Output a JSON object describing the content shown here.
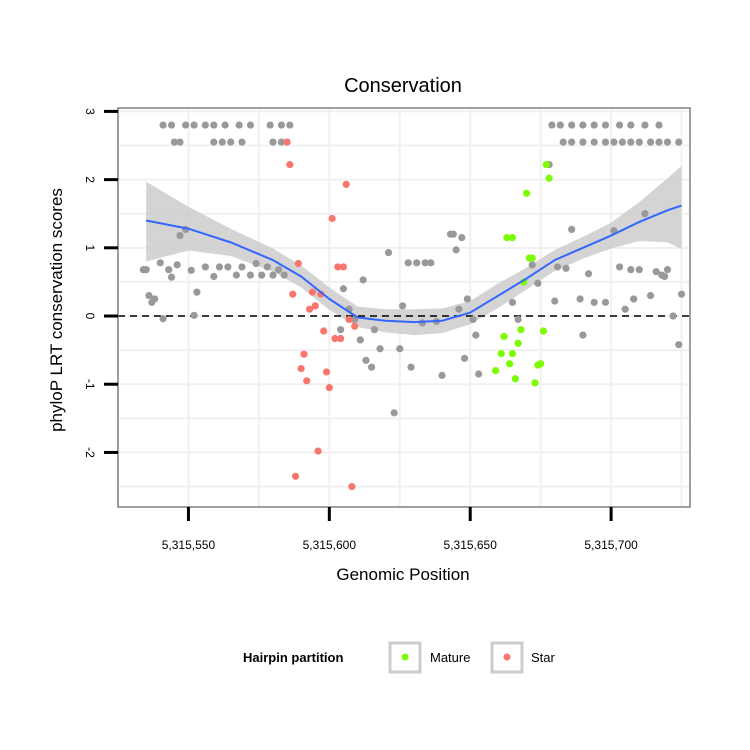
{
  "chart_data": {
    "type": "scatter",
    "title": "Conservation",
    "xlabel": "Genomic Position",
    "ylabel": "phyloP LRT conservation scores",
    "xlim": [
      5315525,
      5315728
    ],
    "ylim": [
      -2.8,
      3.05
    ],
    "x_ticks": [
      5315550,
      5315600,
      5315650,
      5315700
    ],
    "x_tick_labels": [
      "5,315,550",
      "5,315,600",
      "5,315,650",
      "5,315,700"
    ],
    "y_ticks": [
      -2,
      -1,
      0,
      1,
      2,
      3
    ],
    "y_tick_labels": [
      "-2",
      "-1",
      "0",
      "1",
      "2",
      "3"
    ],
    "reference_line": {
      "y": 0,
      "style": "dashed"
    },
    "colors": {
      "other": "#999999",
      "Mature": "#7cfc00",
      "Star": "#f8766d",
      "smooth_line": "#3366ff",
      "smooth_band": "#cccccc",
      "grid": "#f0f0f0",
      "frame": "#808080"
    },
    "legend": {
      "title": "Hairpin partition",
      "position": "bottom",
      "entries": [
        {
          "label": "Mature",
          "color": "#7cfc00"
        },
        {
          "label": "Star",
          "color": "#f8766d"
        }
      ]
    },
    "smooth": {
      "x": [
        5315535,
        5315550,
        5315565,
        5315580,
        5315590,
        5315600,
        5315610,
        5315620,
        5315630,
        5315640,
        5315650,
        5315660,
        5315670,
        5315680,
        5315690,
        5315700,
        5315710,
        5315720,
        5315725
      ],
      "y": [
        1.4,
        1.28,
        1.08,
        0.82,
        0.58,
        0.25,
        -0.02,
        -0.07,
        -0.09,
        -0.07,
        0.05,
        0.3,
        0.55,
        0.82,
        1.0,
        1.18,
        1.38,
        1.55,
        1.62
      ],
      "lower": [
        0.8,
        0.96,
        0.88,
        0.65,
        0.42,
        0.09,
        -0.16,
        -0.24,
        -0.28,
        -0.25,
        -0.12,
        0.12,
        0.39,
        0.66,
        0.84,
        0.99,
        1.1,
        1.08,
        0.98
      ],
      "upper": [
        1.97,
        1.6,
        1.28,
        0.99,
        0.74,
        0.42,
        0.14,
        0.1,
        0.1,
        0.11,
        0.22,
        0.48,
        0.71,
        0.97,
        1.16,
        1.37,
        1.67,
        2.02,
        2.2
      ]
    },
    "series": [
      {
        "name": "Other",
        "points": [
          [
            5315534,
            0.68
          ],
          [
            5315535,
            0.68
          ],
          [
            5315536,
            0.3
          ],
          [
            5315537,
            0.2
          ],
          [
            5315538,
            0.25
          ],
          [
            5315540,
            0.78
          ],
          [
            5315541,
            -0.04
          ],
          [
            5315543,
            0.68
          ],
          [
            5315544,
            0.57
          ],
          [
            5315546,
            0.75
          ],
          [
            5315547,
            1.18
          ],
          [
            5315549,
            1.27
          ],
          [
            5315551,
            0.67
          ],
          [
            5315552,
            0.01
          ],
          [
            5315553,
            0.35
          ],
          [
            5315556,
            0.72
          ],
          [
            5315559,
            0.58
          ],
          [
            5315561,
            0.72
          ],
          [
            5315564,
            0.72
          ],
          [
            5315567,
            0.6
          ],
          [
            5315569,
            0.72
          ],
          [
            5315572,
            0.6
          ],
          [
            5315574,
            0.77
          ],
          [
            5315576,
            0.6
          ],
          [
            5315578,
            0.72
          ],
          [
            5315580,
            0.6
          ],
          [
            5315582,
            0.68
          ],
          [
            5315584,
            0.6
          ],
          [
            5315545,
            2.55
          ],
          [
            5315547,
            2.55
          ],
          [
            5315541,
            2.8
          ],
          [
            5315544,
            2.8
          ],
          [
            5315549,
            2.8
          ],
          [
            5315552,
            2.8
          ],
          [
            5315556,
            2.8
          ],
          [
            5315559,
            2.8
          ],
          [
            5315563,
            2.8
          ],
          [
            5315568,
            2.8
          ],
          [
            5315572,
            2.8
          ],
          [
            5315579,
            2.8
          ],
          [
            5315583,
            2.8
          ],
          [
            5315586,
            2.8
          ],
          [
            5315559,
            2.55
          ],
          [
            5315562,
            2.55
          ],
          [
            5315565,
            2.55
          ],
          [
            5315569,
            2.55
          ],
          [
            5315580,
            2.55
          ],
          [
            5315583,
            2.55
          ],
          [
            5315604,
            -0.2
          ],
          [
            5315605,
            0.4
          ],
          [
            5315607,
            0.1
          ],
          [
            5315609,
            -0.05
          ],
          [
            5315611,
            -0.35
          ],
          [
            5315612,
            0.53
          ],
          [
            5315613,
            -0.65
          ],
          [
            5315615,
            -0.75
          ],
          [
            5315616,
            -0.2
          ],
          [
            5315618,
            -0.48
          ],
          [
            5315621,
            0.93
          ],
          [
            5315623,
            -1.42
          ],
          [
            5315625,
            -0.48
          ],
          [
            5315626,
            0.15
          ],
          [
            5315628,
            0.78
          ],
          [
            5315629,
            -0.75
          ],
          [
            5315631,
            0.78
          ],
          [
            5315633,
            -0.1
          ],
          [
            5315634,
            0.78
          ],
          [
            5315636,
            0.78
          ],
          [
            5315638,
            -0.08
          ],
          [
            5315640,
            -0.87
          ],
          [
            5315643,
            1.2
          ],
          [
            5315644,
            1.2
          ],
          [
            5315645,
            0.97
          ],
          [
            5315646,
            0.1
          ],
          [
            5315647,
            1.15
          ],
          [
            5315648,
            -0.62
          ],
          [
            5315649,
            0.25
          ],
          [
            5315651,
            -0.05
          ],
          [
            5315652,
            -0.28
          ],
          [
            5315653,
            -0.85
          ],
          [
            5315665,
            0.2
          ],
          [
            5315667,
            -0.05
          ],
          [
            5315672,
            0.75
          ],
          [
            5315674,
            0.48
          ],
          [
            5315678,
            2.22
          ],
          [
            5315680,
            0.22
          ],
          [
            5315681,
            0.72
          ],
          [
            5315684,
            0.7
          ],
          [
            5315686,
            1.27
          ],
          [
            5315689,
            0.25
          ],
          [
            5315690,
            -0.28
          ],
          [
            5315692,
            0.62
          ],
          [
            5315694,
            0.2
          ],
          [
            5315698,
            0.2
          ],
          [
            5315701,
            1.25
          ],
          [
            5315703,
            0.72
          ],
          [
            5315705,
            0.1
          ],
          [
            5315707,
            0.68
          ],
          [
            5315708,
            0.25
          ],
          [
            5315710,
            0.68
          ],
          [
            5315712,
            1.5
          ],
          [
            5315714,
            0.3
          ],
          [
            5315716,
            0.65
          ],
          [
            5315718,
            0.6
          ],
          [
            5315719,
            0.58
          ],
          [
            5315720,
            0.68
          ],
          [
            5315722,
            0.0
          ],
          [
            5315724,
            -0.42
          ],
          [
            5315725,
            0.32
          ],
          [
            5315679,
            2.8
          ],
          [
            5315682,
            2.8
          ],
          [
            5315686,
            2.8
          ],
          [
            5315690,
            2.8
          ],
          [
            5315694,
            2.8
          ],
          [
            5315698,
            2.8
          ],
          [
            5315703,
            2.8
          ],
          [
            5315707,
            2.8
          ],
          [
            5315712,
            2.8
          ],
          [
            5315717,
            2.8
          ],
          [
            5315683,
            2.55
          ],
          [
            5315686,
            2.55
          ],
          [
            5315690,
            2.55
          ],
          [
            5315694,
            2.55
          ],
          [
            5315698,
            2.55
          ],
          [
            5315701,
            2.55
          ],
          [
            5315704,
            2.55
          ],
          [
            5315707,
            2.55
          ],
          [
            5315710,
            2.55
          ],
          [
            5315714,
            2.55
          ],
          [
            5315717,
            2.55
          ],
          [
            5315720,
            2.55
          ],
          [
            5315724,
            2.55
          ]
        ]
      },
      {
        "name": "Mature",
        "points": [
          [
            5315659,
            -0.8
          ],
          [
            5315661,
            -0.55
          ],
          [
            5315662,
            -0.3
          ],
          [
            5315663,
            1.15
          ],
          [
            5315664,
            -0.7
          ],
          [
            5315665,
            -0.55
          ],
          [
            5315666,
            -0.92
          ],
          [
            5315667,
            -0.4
          ],
          [
            5315668,
            -0.2
          ],
          [
            5315669,
            0.5
          ],
          [
            5315670,
            1.8
          ],
          [
            5315671,
            0.85
          ],
          [
            5315672,
            0.85
          ],
          [
            5315673,
            -0.98
          ],
          [
            5315674,
            -0.72
          ],
          [
            5315675,
            -0.7
          ],
          [
            5315676,
            -0.22
          ],
          [
            5315677,
            2.22
          ],
          [
            5315678,
            2.02
          ],
          [
            5315665,
            1.15
          ]
        ]
      },
      {
        "name": "Star",
        "points": [
          [
            5315585,
            2.55
          ],
          [
            5315586,
            2.22
          ],
          [
            5315587,
            0.32
          ],
          [
            5315588,
            -2.35
          ],
          [
            5315589,
            0.77
          ],
          [
            5315590,
            -0.77
          ],
          [
            5315591,
            -0.56
          ],
          [
            5315592,
            -0.95
          ],
          [
            5315593,
            0.1
          ],
          [
            5315594,
            0.35
          ],
          [
            5315595,
            0.15
          ],
          [
            5315596,
            -1.98
          ],
          [
            5315597,
            0.32
          ],
          [
            5315598,
            -0.22
          ],
          [
            5315599,
            -0.82
          ],
          [
            5315600,
            -1.05
          ],
          [
            5315601,
            1.43
          ],
          [
            5315602,
            -0.33
          ],
          [
            5315603,
            0.72
          ],
          [
            5315604,
            -0.33
          ],
          [
            5315605,
            0.72
          ],
          [
            5315606,
            1.93
          ],
          [
            5315607,
            -0.05
          ],
          [
            5315608,
            -2.5
          ],
          [
            5315609,
            -0.15
          ]
        ]
      }
    ]
  }
}
